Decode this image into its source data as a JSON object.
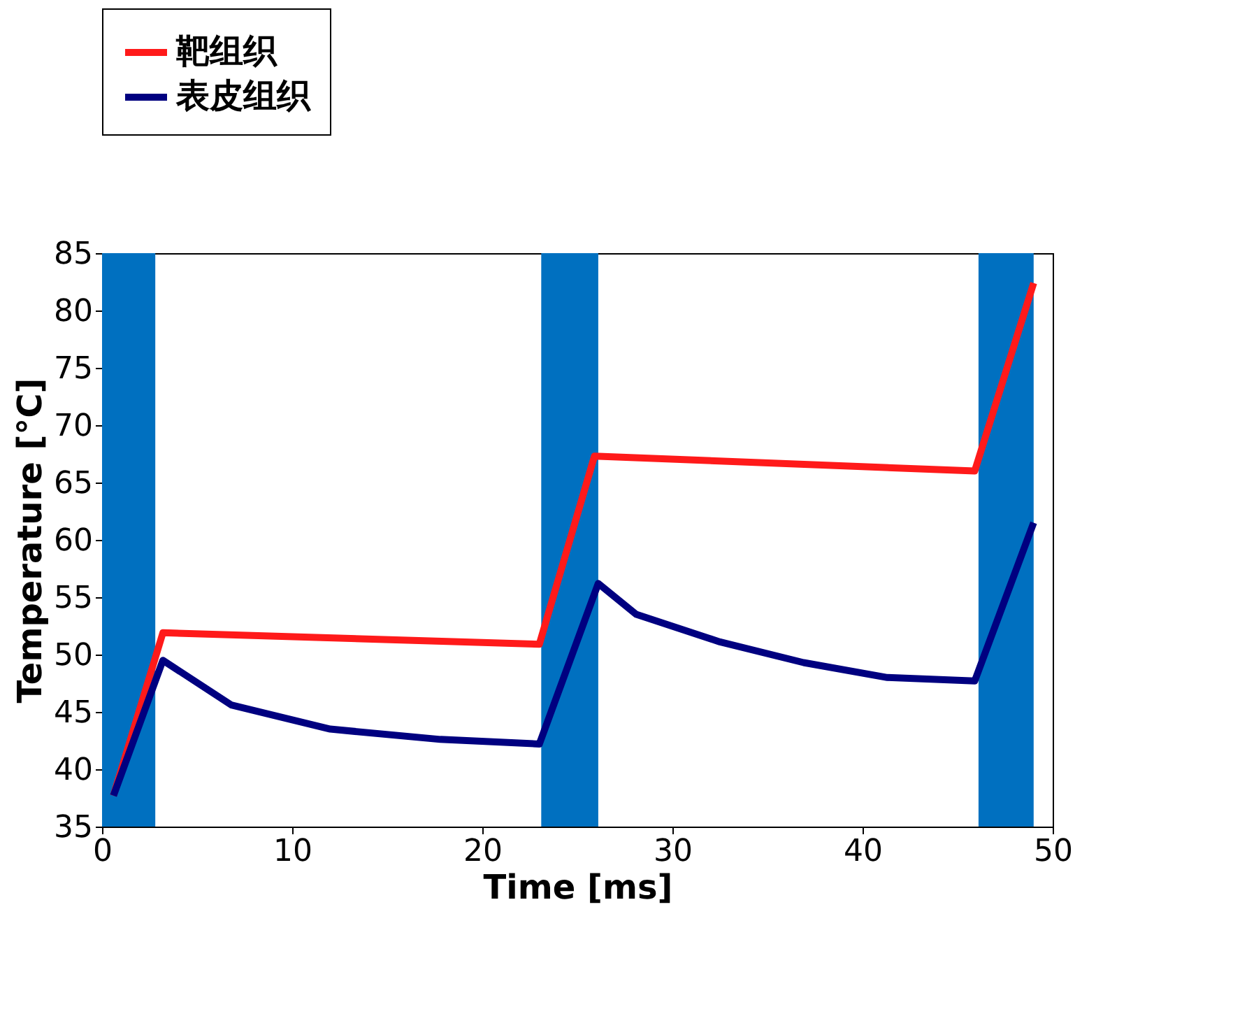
{
  "chart_data": {
    "type": "line",
    "xlabel": "Time [ms]",
    "ylabel": "Temperature [°C]",
    "xlim": [
      0,
      50
    ],
    "ylim": [
      35,
      85
    ],
    "xticks": [
      0,
      10,
      20,
      30,
      40,
      50
    ],
    "yticks": [
      35,
      40,
      45,
      50,
      55,
      60,
      65,
      70,
      75,
      80,
      85
    ],
    "grid": false,
    "legend": "top left",
    "marker": "none",
    "line_style": "solid",
    "bands": [
      {
        "axis": "x",
        "from": 0,
        "to": 2.8,
        "color": "#0070c0"
      },
      {
        "axis": "x",
        "from": 23.1,
        "to": 26.1,
        "color": "#0070c0"
      },
      {
        "axis": "x",
        "from": 46.1,
        "to": 49.0,
        "color": "#0070c0"
      }
    ],
    "series": [
      {
        "name": "靶组织",
        "color": "#ff1a1a",
        "x": [
          0.6,
          3.2,
          23.0,
          25.9,
          45.9,
          49.0
        ],
        "values": [
          37.7,
          51.9,
          50.9,
          67.3,
          66.0,
          82.4
        ]
      },
      {
        "name": "表皮组织",
        "color": "#000080",
        "x": [
          0.6,
          3.2,
          6.8,
          12.0,
          17.8,
          23.0,
          26.1,
          28.1,
          32.5,
          36.9,
          41.3,
          45.9,
          49.0
        ],
        "values": [
          37.7,
          49.5,
          45.6,
          43.5,
          42.6,
          42.2,
          56.2,
          53.5,
          51.1,
          49.3,
          48.0,
          47.7,
          61.5
        ]
      }
    ]
  }
}
